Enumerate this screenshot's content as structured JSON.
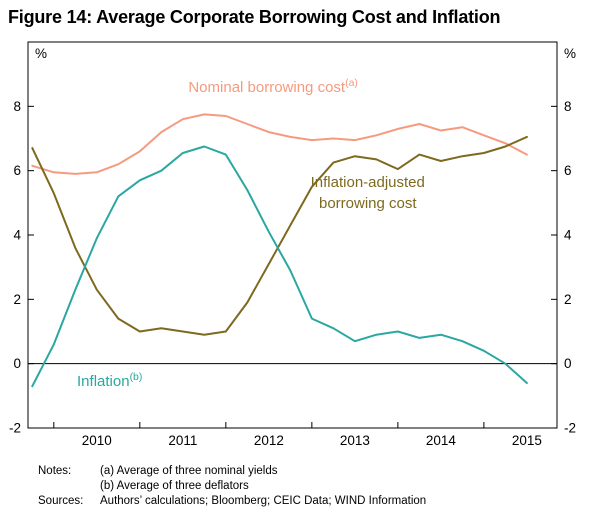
{
  "figure": {
    "title": "Figure 14: Average Corporate Borrowing Cost and Inflation"
  },
  "chart_data": {
    "type": "line",
    "title": "Figure 14: Average Corporate Borrowing Cost and Inflation",
    "unit_left": "%",
    "unit_right": "%",
    "ylim": [
      -2,
      10
    ],
    "yticks": [
      -2,
      0,
      2,
      4,
      6,
      8
    ],
    "xlim": [
      2009.7,
      2015.85
    ],
    "xticks": [
      2010,
      2011,
      2012,
      2013,
      2014,
      2015
    ],
    "xtick_label_offset": 0.5,
    "zero_line": 0,
    "x": [
      2009.75,
      2010.0,
      2010.25,
      2010.5,
      2010.75,
      2011.0,
      2011.25,
      2011.5,
      2011.75,
      2012.0,
      2012.25,
      2012.5,
      2012.75,
      2013.0,
      2013.25,
      2013.5,
      2013.75,
      2014.0,
      2014.25,
      2014.5,
      2014.75,
      2015.0,
      2015.25,
      2015.5
    ],
    "series": [
      {
        "id": "nominal-borrowing-cost",
        "name": "Nominal borrowing cost",
        "footnote": "(a)",
        "color": "#f69a7f",
        "values": [
          6.15,
          5.95,
          5.9,
          5.95,
          6.2,
          6.6,
          7.2,
          7.6,
          7.75,
          7.7,
          7.45,
          7.2,
          7.05,
          6.95,
          7.0,
          6.95,
          7.1,
          7.3,
          7.45,
          7.25,
          7.35,
          7.1,
          6.85,
          6.5
        ]
      },
      {
        "id": "inflation-adjusted-borrowing-cost",
        "name": "Inflation-adjusted borrowing cost",
        "footnote": "",
        "color": "#7d6a1e",
        "values": [
          6.7,
          5.3,
          3.6,
          2.3,
          1.4,
          1.0,
          1.1,
          1.0,
          0.9,
          1.0,
          1.9,
          3.1,
          4.3,
          5.5,
          6.25,
          6.45,
          6.35,
          6.05,
          6.5,
          6.3,
          6.45,
          6.55,
          6.75,
          7.05
        ]
      },
      {
        "id": "inflation",
        "name": "Inflation",
        "footnote": "(b)",
        "color": "#2aa7a2",
        "values": [
          -0.7,
          0.6,
          2.3,
          3.9,
          5.2,
          5.7,
          6.0,
          6.55,
          6.75,
          6.5,
          5.4,
          4.1,
          2.9,
          1.4,
          1.1,
          0.7,
          0.9,
          1.0,
          0.8,
          0.9,
          0.7,
          0.4,
          0.0,
          -0.6
        ]
      }
    ],
    "annotations": [
      {
        "series": 0,
        "x": 2012.55,
        "y": 8.45,
        "lines": [
          {
            "text": "Nominal borrowing cost",
            "sup": "(a)"
          }
        ]
      },
      {
        "series": 1,
        "x": 2013.65,
        "y": 5.5,
        "lines": [
          {
            "text": "Inflation-adjusted"
          },
          {
            "text": "borrowing cost"
          }
        ]
      },
      {
        "series": 2,
        "x": 2010.65,
        "y": -0.7,
        "lines": [
          {
            "text": "Inflation",
            "sup": "(b)"
          }
        ]
      }
    ]
  },
  "footer": {
    "notes_label": "Notes:",
    "notes": [
      "(a) Average of three nominal yields",
      "(b) Average of three deflators"
    ],
    "sources_label": "Sources:",
    "sources": "Authors’ calculations; Bloomberg; CEIC Data; WIND Information"
  }
}
